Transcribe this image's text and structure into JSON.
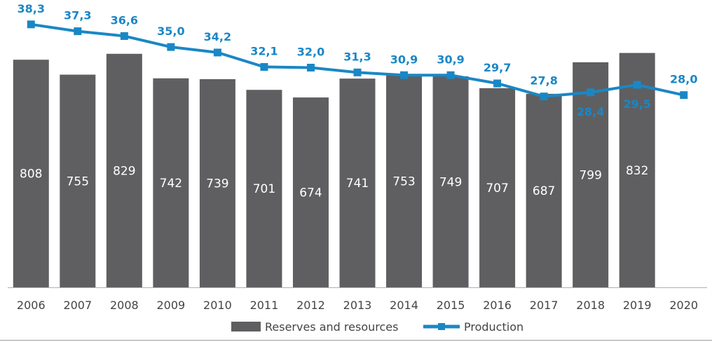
{
  "chart_data": {
    "type": "bar+line",
    "categories": [
      "2006",
      "2007",
      "2008",
      "2009",
      "2010",
      "2011",
      "2012",
      "2013",
      "2014",
      "2015",
      "2016",
      "2017",
      "2018",
      "2019",
      "2020"
    ],
    "series": [
      {
        "name": "Reserves and resources",
        "type": "bar",
        "color": "#5f5f61",
        "values": [
          808,
          755,
          829,
          742,
          739,
          701,
          674,
          741,
          753,
          749,
          707,
          687,
          799,
          832,
          null
        ],
        "labels": [
          "808",
          "755",
          "829",
          "742",
          "739",
          "701",
          "674",
          "741",
          "753",
          "749",
          "707",
          "687",
          "799",
          "832",
          ""
        ]
      },
      {
        "name": "Production",
        "type": "line",
        "color": "#1a87c5",
        "values": [
          38.3,
          37.3,
          36.6,
          35.0,
          34.2,
          32.1,
          32.0,
          31.3,
          30.9,
          30.9,
          29.7,
          27.8,
          28.4,
          29.5,
          28.0
        ],
        "labels": [
          "38,3",
          "37,3",
          "36,6",
          "35,0",
          "34,2",
          "32,1",
          "32,0",
          "31,3",
          "30,9",
          "30,9",
          "29,7",
          "27,8",
          "28,4",
          "29,5",
          "28,0"
        ]
      }
    ],
    "bar_axis": {
      "min": 0,
      "max": 1020
    },
    "line_axis": {
      "min": 0,
      "max": 41.85
    },
    "legend": {
      "position": "bottom",
      "items": [
        {
          "label": "Reserves and resources",
          "kind": "bar"
        },
        {
          "label": "Production",
          "kind": "line"
        }
      ]
    },
    "grid": false
  }
}
